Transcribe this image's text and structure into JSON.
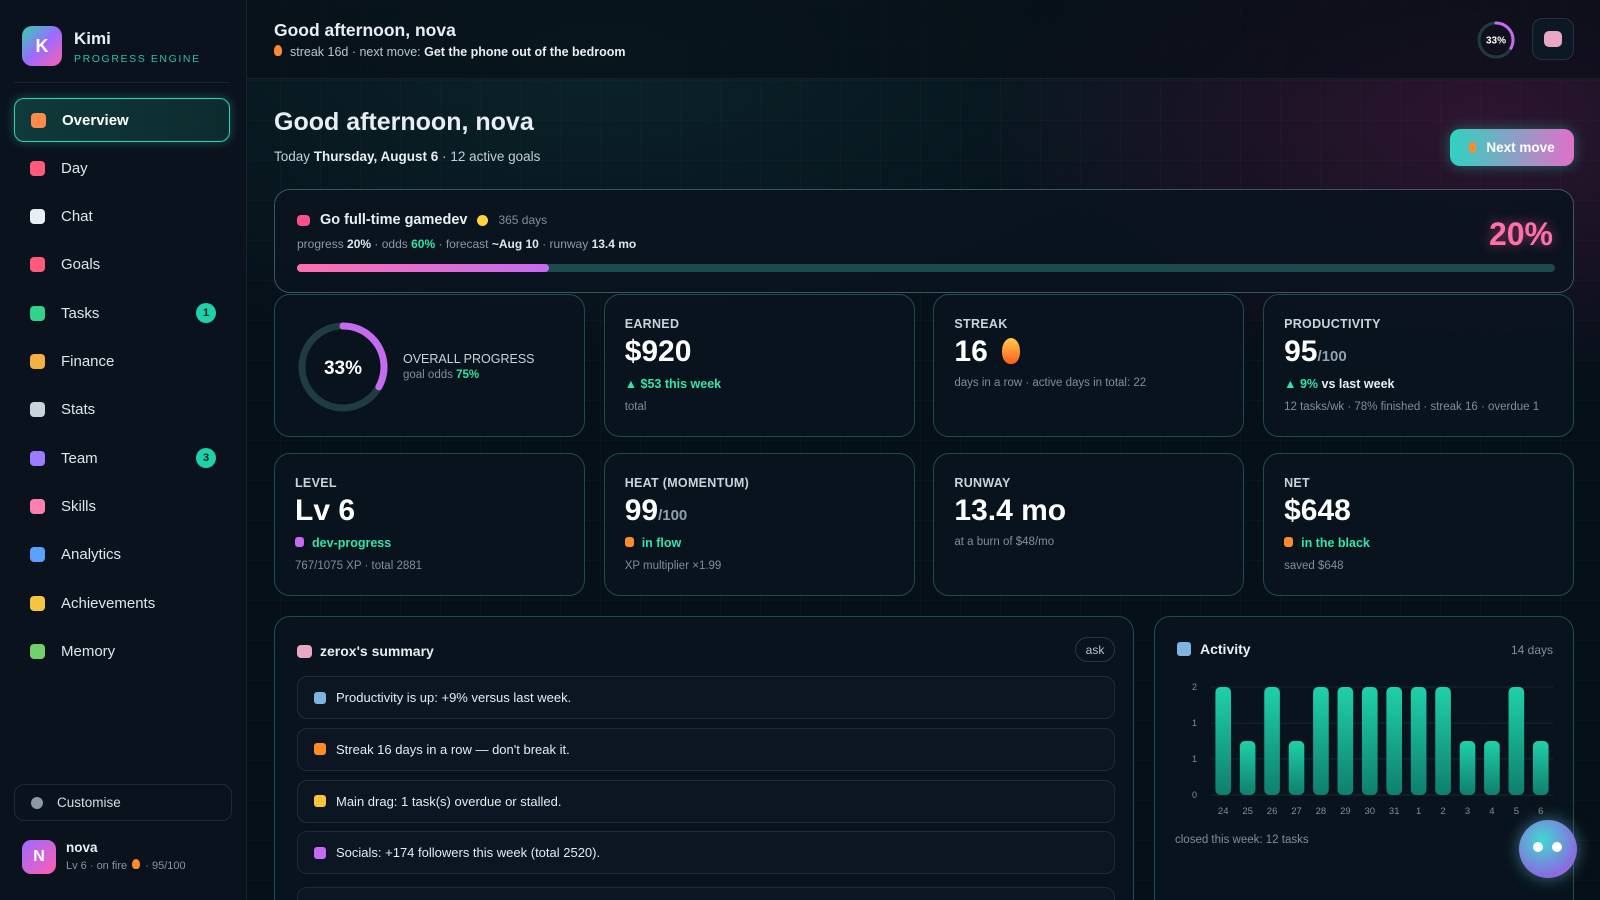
{
  "brand": {
    "logo": "K",
    "name": "Kimi",
    "tagline": "PROGRESS ENGINE"
  },
  "nav": [
    {
      "label": "Overview",
      "active": true
    },
    {
      "label": "Day"
    },
    {
      "label": "Chat"
    },
    {
      "label": "Goals"
    },
    {
      "label": "Tasks",
      "badge": "1"
    },
    {
      "label": "Finance"
    },
    {
      "label": "Stats"
    },
    {
      "label": "Team",
      "badge": "3"
    },
    {
      "label": "Skills"
    },
    {
      "label": "Analytics"
    },
    {
      "label": "Achievements"
    },
    {
      "label": "Memory"
    }
  ],
  "customise": "Customise",
  "user": {
    "avatar": "N",
    "name": "nova",
    "status": "Lv 6 · on fire",
    "score": "· 95/100"
  },
  "topbar": {
    "greeting": "Good afternoon, nova",
    "streak": "streak 16d · next move:",
    "next": "Get the phone out of the bedroom",
    "ring": {
      "value": 33,
      "label": "33%"
    }
  },
  "hero": {
    "title": "Good afternoon, nova",
    "date_prefix": "Today",
    "date": "Thursday, August 6",
    "date_suffix": "· 12 active goals",
    "button": "Next move"
  },
  "goal": {
    "title": "Go full-time gamedev",
    "duration": "365 days",
    "meta": [
      {
        "text": "progress",
        "style": "plain"
      },
      {
        "text": "20%",
        "style": "bold"
      },
      {
        "text": "· odds",
        "style": "plain"
      },
      {
        "text": "60%",
        "style": "green"
      },
      {
        "text": "· forecast",
        "style": "plain"
      },
      {
        "text": "~Aug 10",
        "style": "bold"
      },
      {
        "text": "· runway",
        "style": "plain"
      },
      {
        "text": "13.4 mo",
        "style": "bold"
      }
    ],
    "progress": {
      "value": 20,
      "label": "20%"
    }
  },
  "cards": [
    {
      "ring": {
        "value": 33,
        "label": "33%"
      },
      "label": "OVERALL PROGRESS",
      "sub_prefix": "goal odds",
      "sub": "75%"
    },
    {
      "label": "EARNED",
      "value": "$920",
      "delta": "▲ $53 this week",
      "note": "total"
    },
    {
      "label": "STREAK",
      "value": "16",
      "note": "days in a row · active days in total: 22"
    },
    {
      "label": "PRODUCTIVITY",
      "value": "95",
      "unit": "/100",
      "delta": "▲ 9%",
      "delta_suffix": "vs last week",
      "note": "12 tasks/wk · 78% finished · streak 16 · overdue 1"
    },
    {
      "label": "LEVEL",
      "value": "Lv 6",
      "tag": "dev-progress",
      "note": "767/1075 XP · total 2881"
    },
    {
      "label": "HEAT (MOMENTUM)",
      "value": "99",
      "unit": "/100",
      "tag": "in flow",
      "note": "XP multiplier ×1.99"
    },
    {
      "label": "RUNWAY",
      "value": "13.4 mo",
      "note": "at a burn of $48/mo"
    },
    {
      "label": "NET",
      "value": "$648",
      "tag": "in the black",
      "note": "saved $648"
    }
  ],
  "summary": {
    "title": "zerox's summary",
    "button": "ask",
    "items": [
      "Productivity is up: +9% versus last week.",
      "Streak 16 days in a row — don't break it.",
      "Main drag: 1 task(s) overdue or stalled.",
      "Socials: +174 followers this week (total 2520)."
    ]
  },
  "chart_data": {
    "type": "bar",
    "title": "Activity",
    "subtitle": "14 days",
    "note": "closed this week: 12 tasks",
    "categories": [
      "24",
      "25",
      "26",
      "27",
      "28",
      "29",
      "30",
      "31",
      "1",
      "2",
      "3",
      "4",
      "5",
      "6"
    ],
    "values": [
      2,
      1,
      2,
      1,
      2,
      2,
      2,
      2,
      2,
      2,
      1,
      1,
      2,
      1
    ],
    "color": "#1fd1a8",
    "ylim": [
      0,
      2
    ],
    "yticks": [
      0,
      {
        "value": 0.67,
        "label": "1"
      },
      {
        "value": 1.33,
        "label": "1"
      },
      2
    ],
    "grid": true
  }
}
